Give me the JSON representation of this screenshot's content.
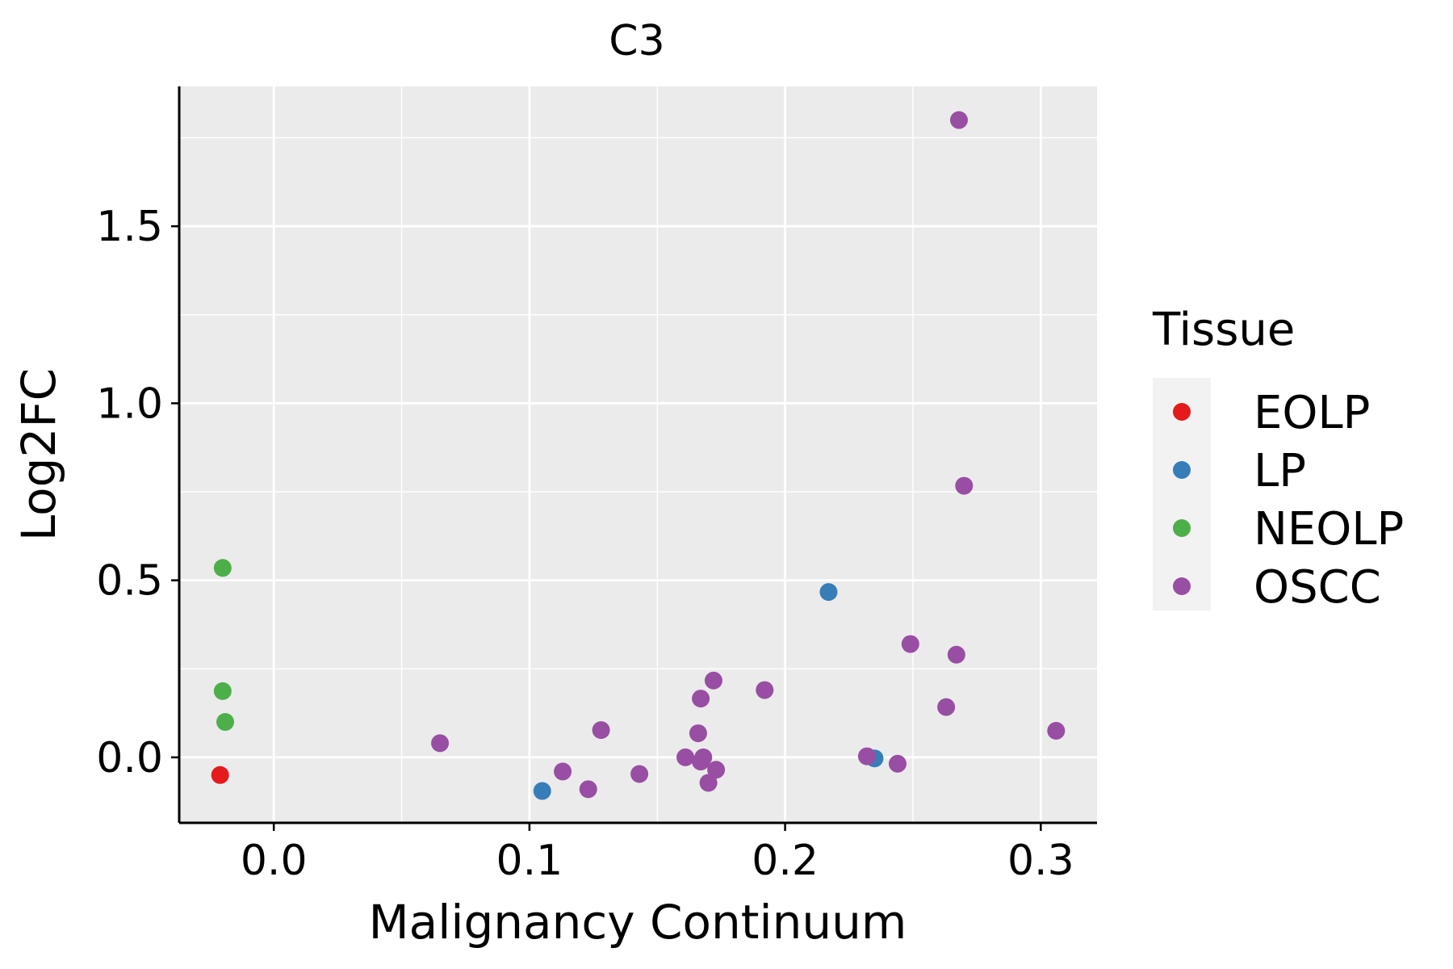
{
  "chart_data": {
    "type": "scatter",
    "title": "C3",
    "xlabel": "Malignancy Continuum",
    "ylabel": "Log2FC",
    "xlim": [
      -0.037,
      0.322
    ],
    "ylim": [
      -0.185,
      1.895
    ],
    "x_ticks": [
      0.0,
      0.1,
      0.2,
      0.3
    ],
    "x_tick_labels": [
      "0.0",
      "0.1",
      "0.2",
      "0.3"
    ],
    "y_ticks": [
      0.0,
      0.5,
      1.0,
      1.5
    ],
    "y_tick_labels": [
      "0.0",
      "0.5",
      "1.0",
      "1.5"
    ],
    "grid": true,
    "legend": {
      "title": "Tissue",
      "placement": "right"
    },
    "series": [
      {
        "name": "EOLP",
        "color": "#E41A1C",
        "points": [
          [
            -0.021,
            -0.05
          ]
        ]
      },
      {
        "name": "LP",
        "color": "#377EB8",
        "points": [
          [
            0.105,
            -0.095
          ],
          [
            0.217,
            0.467
          ],
          [
            0.235,
            -0.003
          ]
        ]
      },
      {
        "name": "NEOLP",
        "color": "#4DAF4A",
        "points": [
          [
            -0.02,
            0.535
          ],
          [
            -0.02,
            0.187
          ],
          [
            -0.019,
            0.1
          ]
        ]
      },
      {
        "name": "OSCC",
        "color": "#984EA3",
        "points": [
          [
            0.065,
            0.04
          ],
          [
            0.113,
            -0.04
          ],
          [
            0.123,
            -0.09
          ],
          [
            0.128,
            0.077
          ],
          [
            0.143,
            -0.047
          ],
          [
            0.161,
            0.0
          ],
          [
            0.166,
            0.068
          ],
          [
            0.167,
            0.166
          ],
          [
            0.167,
            -0.012
          ],
          [
            0.168,
            0.0
          ],
          [
            0.17,
            -0.072
          ],
          [
            0.172,
            0.217
          ],
          [
            0.173,
            -0.035
          ],
          [
            0.192,
            0.19
          ],
          [
            0.232,
            0.003
          ],
          [
            0.244,
            -0.018
          ],
          [
            0.249,
            0.32
          ],
          [
            0.263,
            0.142
          ],
          [
            0.267,
            0.29
          ],
          [
            0.268,
            1.8
          ],
          [
            0.27,
            0.767
          ],
          [
            0.306,
            0.075
          ]
        ]
      }
    ]
  }
}
